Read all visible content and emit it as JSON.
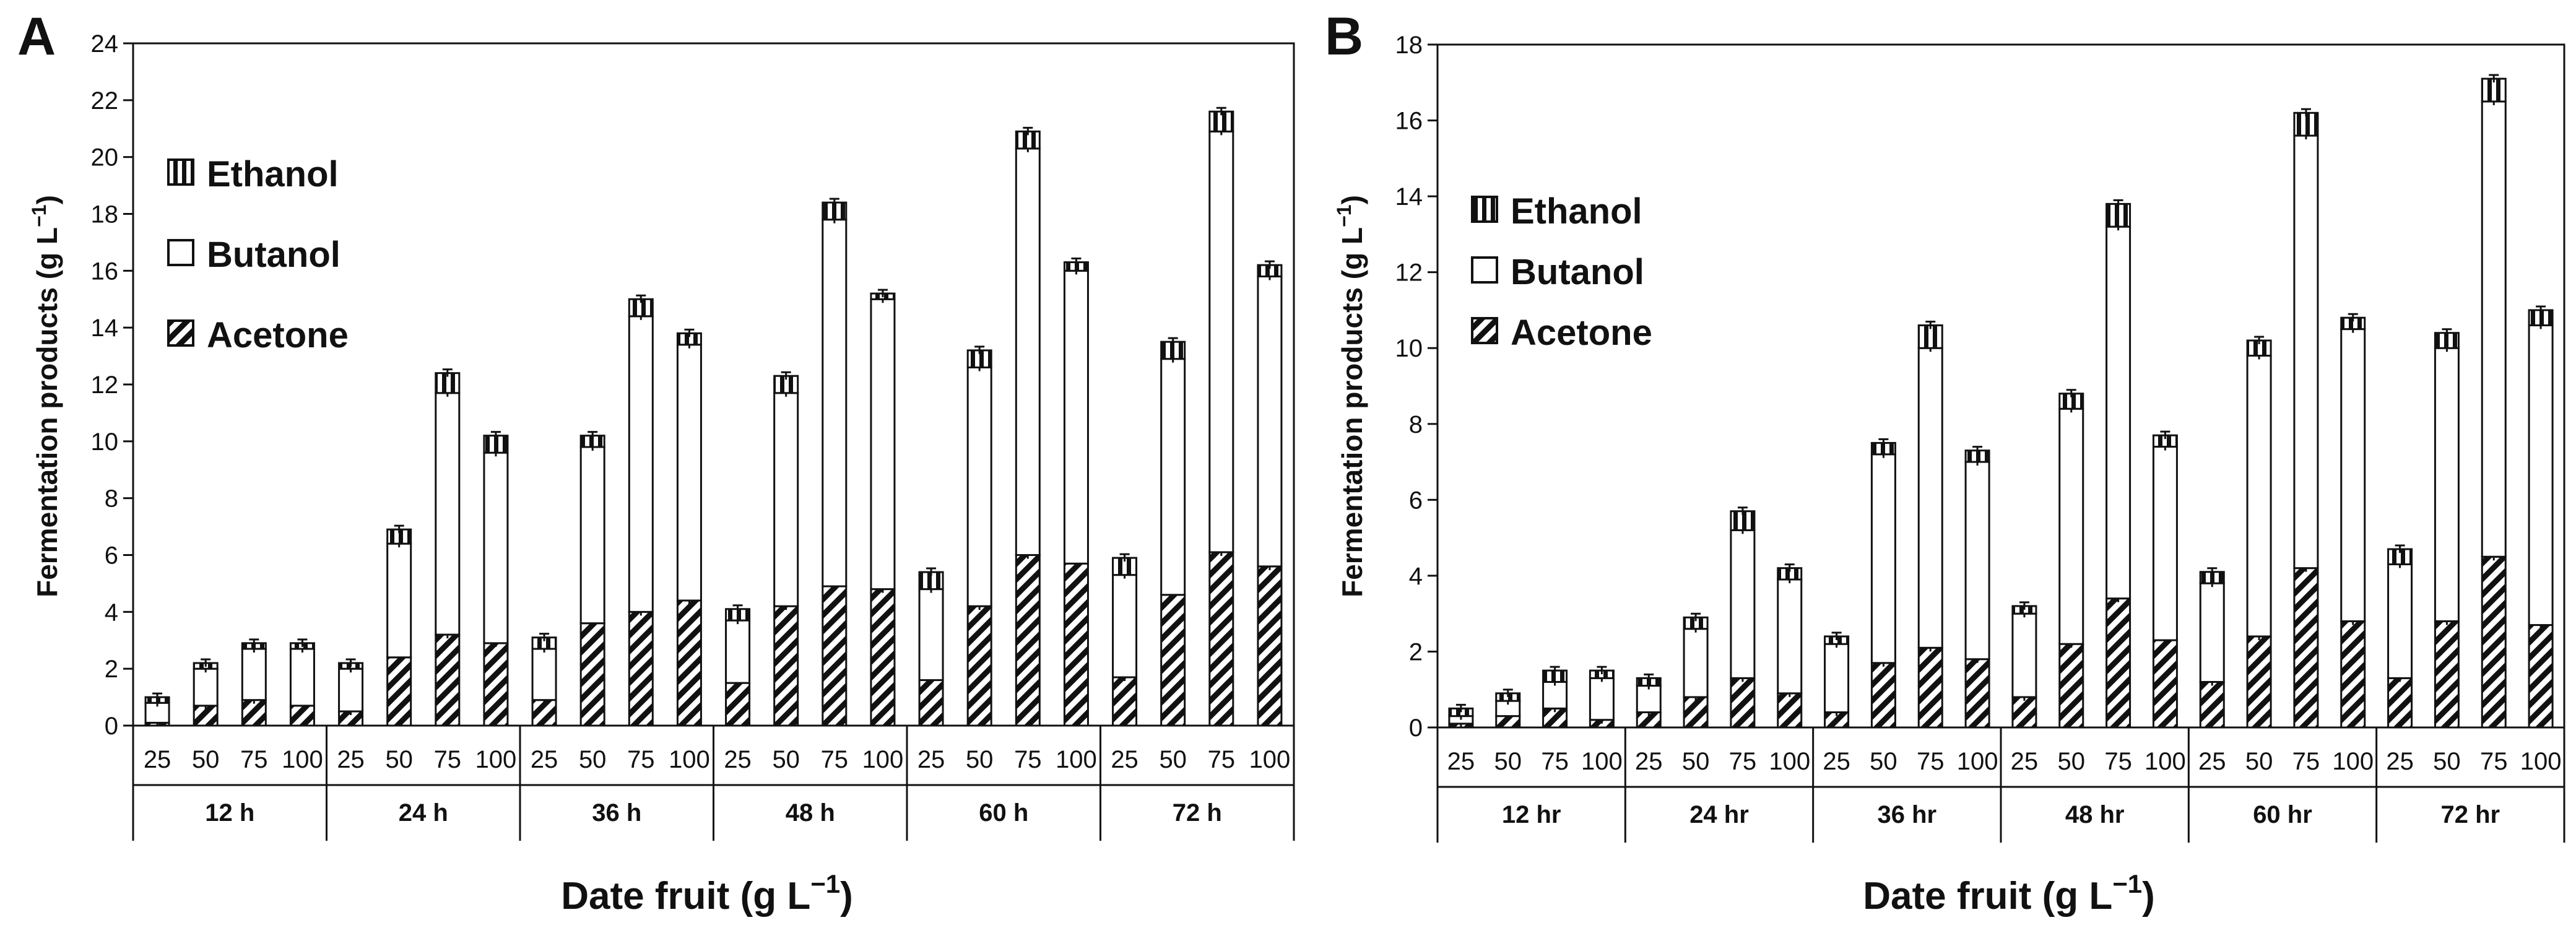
{
  "chart_data": [
    {
      "type": "bar",
      "stacked": true,
      "panel": "A",
      "ylabel": "Fermentation products (g L",
      "ylabel_sup": "−1",
      "ylabel_end": ")",
      "xlabel": "Date fruit (g L",
      "xlabel_sup": "−1",
      "xlabel_end": ")",
      "ylim": [
        0,
        24
      ],
      "ytick_step": 2,
      "groups": [
        "12 h",
        "24 h",
        "36 h",
        "48 h",
        "60 h",
        "72 h"
      ],
      "categories": [
        "25",
        "50",
        "75",
        "100"
      ],
      "legend": [
        "Ethanol",
        "Butanol",
        "Acetone"
      ],
      "series": [
        {
          "name": "Acetone",
          "values": [
            [
              0.1,
              0.7,
              0.9,
              0.7
            ],
            [
              0.5,
              2.4,
              3.2,
              2.9
            ],
            [
              0.9,
              3.6,
              4.0,
              4.4
            ],
            [
              1.5,
              4.2,
              4.9,
              4.8
            ],
            [
              1.6,
              4.2,
              6.0,
              5.7
            ],
            [
              1.7,
              4.6,
              6.1,
              5.6
            ]
          ]
        },
        {
          "name": "Butanol",
          "values": [
            [
              0.7,
              1.3,
              1.8,
              2.0
            ],
            [
              1.5,
              4.0,
              8.5,
              6.7
            ],
            [
              1.8,
              6.2,
              10.4,
              9.0
            ],
            [
              2.2,
              7.5,
              12.9,
              10.2
            ],
            [
              3.2,
              8.4,
              14.3,
              10.3
            ],
            [
              3.6,
              8.3,
              14.8,
              10.2
            ]
          ]
        },
        {
          "name": "Ethanol",
          "values": [
            [
              0.2,
              0.2,
              0.2,
              0.2
            ],
            [
              0.2,
              0.5,
              0.7,
              0.6
            ],
            [
              0.4,
              0.4,
              0.6,
              0.4
            ],
            [
              0.4,
              0.6,
              0.6,
              0.2
            ],
            [
              0.6,
              0.6,
              0.6,
              0.3
            ],
            [
              0.6,
              0.6,
              0.7,
              0.4
            ]
          ]
        }
      ]
    },
    {
      "type": "bar",
      "stacked": true,
      "panel": "B",
      "ylabel": "Fermentation products (g L",
      "ylabel_sup": "−1",
      "ylabel_end": ")",
      "xlabel": "Date fruit (g L",
      "xlabel_sup": "−1",
      "xlabel_end": ")",
      "ylim": [
        0,
        18
      ],
      "ytick_step": 2,
      "groups": [
        "12 hr",
        "24 hr",
        "36 hr",
        "48 hr",
        "60 hr",
        "72 hr"
      ],
      "categories": [
        "25",
        "50",
        "75",
        "100"
      ],
      "legend": [
        "Ethanol",
        "Butanol",
        "Acetone"
      ],
      "series": [
        {
          "name": "Acetone",
          "values": [
            [
              0.1,
              0.3,
              0.5,
              0.2
            ],
            [
              0.4,
              0.8,
              1.3,
              0.9
            ],
            [
              0.4,
              1.7,
              2.1,
              1.8
            ],
            [
              0.8,
              2.2,
              3.4,
              2.3
            ],
            [
              1.2,
              2.4,
              4.2,
              2.8
            ],
            [
              1.3,
              2.8,
              4.5,
              2.7
            ]
          ]
        },
        {
          "name": "Butanol",
          "values": [
            [
              0.2,
              0.4,
              0.7,
              1.1
            ],
            [
              0.7,
              1.8,
              3.9,
              3.0
            ],
            [
              1.8,
              5.5,
              7.9,
              5.2
            ],
            [
              2.2,
              6.2,
              9.8,
              5.1
            ],
            [
              2.6,
              7.4,
              11.4,
              7.7
            ],
            [
              3.0,
              7.2,
              12.0,
              7.9
            ]
          ]
        },
        {
          "name": "Ethanol",
          "values": [
            [
              0.2,
              0.2,
              0.3,
              0.2
            ],
            [
              0.2,
              0.3,
              0.5,
              0.3
            ],
            [
              0.2,
              0.3,
              0.6,
              0.3
            ],
            [
              0.2,
              0.4,
              0.6,
              0.3
            ],
            [
              0.3,
              0.4,
              0.6,
              0.3
            ],
            [
              0.4,
              0.4,
              0.6,
              0.4
            ]
          ]
        }
      ]
    }
  ]
}
